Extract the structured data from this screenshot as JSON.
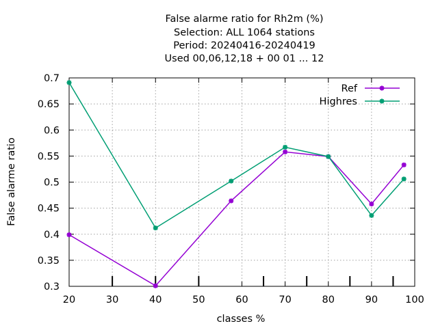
{
  "chart_data": {
    "type": "line",
    "title_lines": [
      "False alarme ratio  for Rh2m (%)",
      "Selection: ALL   1064 stations",
      "Period: 20240416-20240419",
      "Used  00,06,12,18 + 00 01 ... 12"
    ],
    "xlabel": "classes %",
    "ylabel": "False alarme ratio",
    "xlim": [
      20,
      100
    ],
    "ylim": [
      0.3,
      0.7
    ],
    "xticks": [
      "20",
      "30",
      "40",
      "50",
      "60",
      "70",
      "80",
      "90",
      "100"
    ],
    "yticks": [
      "0.3",
      "0.35",
      "0.4",
      "0.45",
      "0.5",
      "0.55",
      "0.6",
      "0.65",
      "0.7"
    ],
    "class_marks": [
      30,
      40,
      50,
      65,
      75,
      85,
      95
    ],
    "grid": true,
    "legend_position": "top-right",
    "series": [
      {
        "name": "Ref",
        "color": "#9400d3",
        "x": [
          20,
          40,
          57.5,
          70,
          80,
          90,
          97.5
        ],
        "y": [
          0.399,
          0.301,
          0.464,
          0.558,
          0.549,
          0.458,
          0.533
        ]
      },
      {
        "name": "Highres",
        "color": "#009e73",
        "x": [
          20,
          40,
          57.5,
          70,
          80,
          90,
          97.5
        ],
        "y": [
          0.691,
          0.412,
          0.502,
          0.567,
          0.549,
          0.436,
          0.506
        ]
      }
    ]
  }
}
